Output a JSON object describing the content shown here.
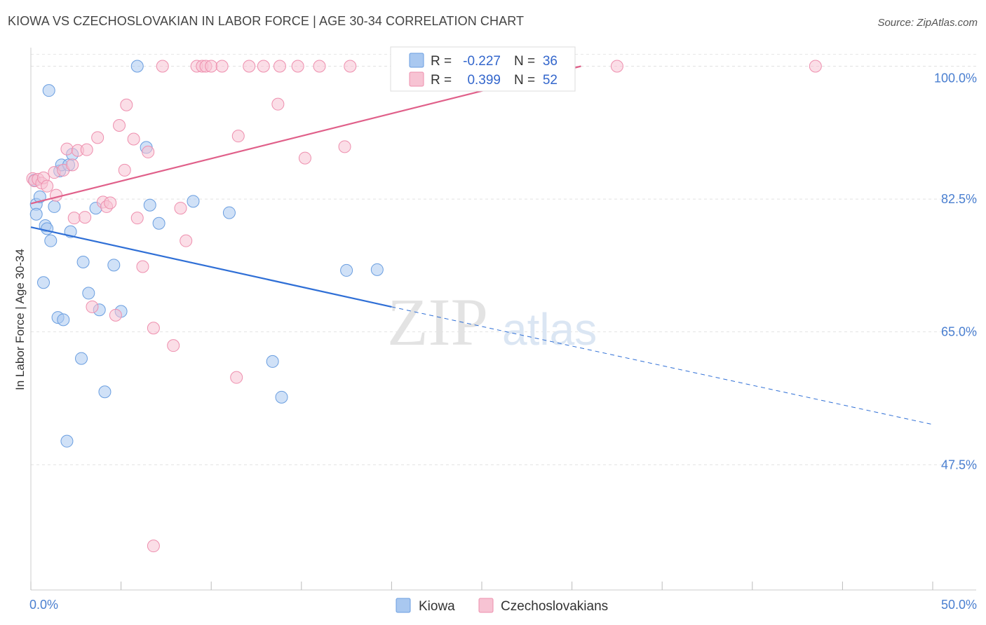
{
  "title": "KIOWA VS CZECHOSLOVAKIAN IN LABOR FORCE | AGE 30-34 CORRELATION CHART",
  "source": "Source: ZipAtlas.com",
  "watermark": {
    "zip": "ZIP",
    "atlas": "atlas"
  },
  "legend": {
    "r_label": "R =",
    "n_label": "N =",
    "rows": [
      {
        "name": "Kiowa",
        "r": "-0.227",
        "n": "36",
        "fill": "#a9c8f0",
        "stroke": "#6a9ee0"
      },
      {
        "name": "Czechoslovakians",
        "r": "0.399",
        "n": "52",
        "fill": "#f7c3d3",
        "stroke": "#ee8fae"
      }
    ]
  },
  "chart_data": {
    "type": "scatter",
    "title": "KIOWA VS CZECHOSLOVAKIAN IN LABOR FORCE | AGE 30-34 CORRELATION CHART",
    "xlabel": "",
    "ylabel": "In Labor Force | Age 30-34",
    "xlim": [
      0,
      50
    ],
    "ylim": [
      31,
      103
    ],
    "x_tick_labels": [
      "0.0%",
      "50.0%"
    ],
    "y_ticks": [
      47.5,
      65.0,
      82.5,
      100.0
    ],
    "y_tick_labels": [
      "47.5%",
      "65.0%",
      "82.5%",
      "100.0%"
    ],
    "grid": true,
    "series": [
      {
        "name": "Kiowa",
        "color": "#6a9ee0",
        "fill": "#a9c8f0",
        "trend": {
          "x": [
            0,
            20
          ],
          "y": [
            78.8,
            68.3
          ],
          "dashed_to": [
            50,
            52.8
          ],
          "color": "#2f6fd6"
        },
        "points": [
          {
            "x": 0.2,
            "y": 85.0
          },
          {
            "x": 0.3,
            "y": 81.8
          },
          {
            "x": 0.3,
            "y": 80.5
          },
          {
            "x": 0.5,
            "y": 82.8
          },
          {
            "x": 0.7,
            "y": 71.5
          },
          {
            "x": 0.8,
            "y": 79.0
          },
          {
            "x": 0.9,
            "y": 78.6
          },
          {
            "x": 1.0,
            "y": 96.8
          },
          {
            "x": 1.1,
            "y": 77.0
          },
          {
            "x": 1.3,
            "y": 81.5
          },
          {
            "x": 1.5,
            "y": 66.9
          },
          {
            "x": 1.6,
            "y": 86.2
          },
          {
            "x": 1.7,
            "y": 87.0
          },
          {
            "x": 1.8,
            "y": 66.6
          },
          {
            "x": 2.0,
            "y": 50.6
          },
          {
            "x": 2.1,
            "y": 87.0
          },
          {
            "x": 2.2,
            "y": 78.2
          },
          {
            "x": 2.3,
            "y": 88.4
          },
          {
            "x": 2.8,
            "y": 61.5
          },
          {
            "x": 2.9,
            "y": 74.2
          },
          {
            "x": 3.2,
            "y": 70.1
          },
          {
            "x": 3.6,
            "y": 81.3
          },
          {
            "x": 3.8,
            "y": 67.9
          },
          {
            "x": 4.1,
            "y": 57.1
          },
          {
            "x": 4.6,
            "y": 73.8
          },
          {
            "x": 5.0,
            "y": 67.7
          },
          {
            "x": 5.9,
            "y": 100.0
          },
          {
            "x": 6.4,
            "y": 89.3
          },
          {
            "x": 6.6,
            "y": 81.7
          },
          {
            "x": 7.1,
            "y": 79.3
          },
          {
            "x": 9.0,
            "y": 82.2
          },
          {
            "x": 11.0,
            "y": 80.7
          },
          {
            "x": 13.4,
            "y": 61.1
          },
          {
            "x": 13.9,
            "y": 56.4
          },
          {
            "x": 17.5,
            "y": 73.1
          },
          {
            "x": 19.2,
            "y": 73.2
          }
        ]
      },
      {
        "name": "Czechoslovakians",
        "color": "#ee8fae",
        "fill": "#f7c3d3",
        "trend": {
          "x": [
            0,
            30.5
          ],
          "y": [
            81.9,
            100.0
          ],
          "color": "#e0608a"
        },
        "points": [
          {
            "x": 0.1,
            "y": 85.2
          },
          {
            "x": 0.2,
            "y": 84.9
          },
          {
            "x": 0.4,
            "y": 85.1
          },
          {
            "x": 0.6,
            "y": 84.6
          },
          {
            "x": 0.7,
            "y": 85.3
          },
          {
            "x": 0.9,
            "y": 84.2
          },
          {
            "x": 1.3,
            "y": 86.0
          },
          {
            "x": 1.4,
            "y": 83.0
          },
          {
            "x": 1.8,
            "y": 86.3
          },
          {
            "x": 2.0,
            "y": 89.1
          },
          {
            "x": 2.3,
            "y": 87.0
          },
          {
            "x": 2.4,
            "y": 80.0
          },
          {
            "x": 2.6,
            "y": 88.9
          },
          {
            "x": 3.0,
            "y": 80.1
          },
          {
            "x": 3.1,
            "y": 89.0
          },
          {
            "x": 3.4,
            "y": 68.3
          },
          {
            "x": 3.7,
            "y": 90.6
          },
          {
            "x": 4.0,
            "y": 82.1
          },
          {
            "x": 4.2,
            "y": 81.5
          },
          {
            "x": 4.4,
            "y": 82.0
          },
          {
            "x": 4.7,
            "y": 67.2
          },
          {
            "x": 4.9,
            "y": 92.2
          },
          {
            "x": 5.2,
            "y": 86.3
          },
          {
            "x": 5.3,
            "y": 94.9
          },
          {
            "x": 5.7,
            "y": 90.4
          },
          {
            "x": 5.9,
            "y": 80.0
          },
          {
            "x": 6.2,
            "y": 73.6
          },
          {
            "x": 6.5,
            "y": 88.7
          },
          {
            "x": 6.8,
            "y": 65.5
          },
          {
            "x": 6.8,
            "y": 36.8
          },
          {
            "x": 7.3,
            "y": 100.0
          },
          {
            "x": 7.9,
            "y": 63.2
          },
          {
            "x": 8.3,
            "y": 81.3
          },
          {
            "x": 8.6,
            "y": 77.0
          },
          {
            "x": 9.2,
            "y": 100.0
          },
          {
            "x": 9.5,
            "y": 100.0
          },
          {
            "x": 9.7,
            "y": 100.0
          },
          {
            "x": 10.0,
            "y": 100.0
          },
          {
            "x": 10.6,
            "y": 100.0
          },
          {
            "x": 11.4,
            "y": 59.0
          },
          {
            "x": 11.5,
            "y": 90.8
          },
          {
            "x": 12.1,
            "y": 100.0
          },
          {
            "x": 12.9,
            "y": 100.0
          },
          {
            "x": 13.7,
            "y": 95.0
          },
          {
            "x": 13.8,
            "y": 100.0
          },
          {
            "x": 14.8,
            "y": 100.0
          },
          {
            "x": 15.2,
            "y": 87.9
          },
          {
            "x": 16.0,
            "y": 100.0
          },
          {
            "x": 17.7,
            "y": 100.0
          },
          {
            "x": 17.4,
            "y": 89.4
          },
          {
            "x": 32.5,
            "y": 100.0
          },
          {
            "x": 43.5,
            "y": 100.0
          }
        ]
      }
    ]
  },
  "bottom_legend": [
    "Kiowa",
    "Czechoslovakians"
  ]
}
